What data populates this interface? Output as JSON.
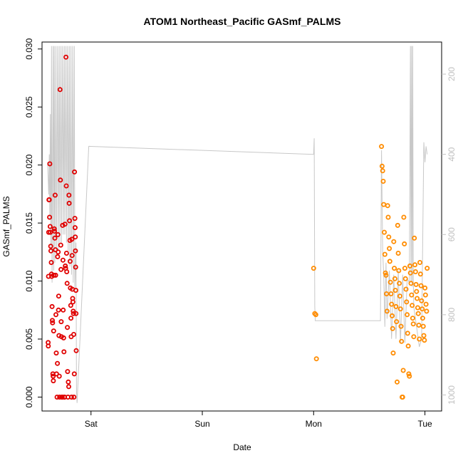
{
  "chart_data": {
    "type": "scatter",
    "title": "ATOM1 Northeast_Pacific GASmf_PALMS",
    "xlabel": "Date",
    "ylabel": "GASmf_PALMS",
    "x_unit": "days since Sat 00:00 (axis prints day names)",
    "x_ticks": [
      {
        "label": "Sat",
        "value": 0
      },
      {
        "label": "Sun",
        "value": 1
      },
      {
        "label": "Mon",
        "value": 2
      },
      {
        "label": "Tue",
        "value": 3
      }
    ],
    "xlim": [
      -0.44,
      3.15
    ],
    "ylim": [
      -0.0012,
      0.0306
    ],
    "y_ticks": [
      "0.000",
      "0.005",
      "0.010",
      "0.015",
      "0.020",
      "0.025",
      "0.030"
    ],
    "y2_ticks": [
      "200",
      "400",
      "600",
      "800",
      "1000"
    ],
    "y2lim": [
      120,
      1040
    ],
    "y2_reversed": true,
    "y2_color": "#c0c0c0",
    "grid": false,
    "series": [
      {
        "color": "#e00000",
        "points": [
          [
            -0.385,
            0.0047
          ],
          [
            -0.384,
            0.0044
          ],
          [
            -0.382,
            0.0104
          ],
          [
            -0.38,
            0.0142
          ],
          [
            -0.378,
            0.017
          ],
          [
            -0.375,
            0.017
          ],
          [
            -0.372,
            0.0155
          ],
          [
            -0.37,
            0.0201
          ],
          [
            -0.367,
            0.0147
          ],
          [
            -0.365,
            0.0142
          ],
          [
            -0.362,
            0.013
          ],
          [
            -0.36,
            0.0126
          ],
          [
            -0.357,
            0.0116
          ],
          [
            -0.355,
            0.0106
          ],
          [
            -0.353,
            0.0104
          ],
          [
            -0.35,
            0.0078
          ],
          [
            -0.347,
            0.0066
          ],
          [
            -0.345,
            0.0064
          ],
          [
            -0.343,
            0.002
          ],
          [
            -0.34,
            0.0018
          ],
          [
            -0.338,
            0.0014
          ],
          [
            -0.336,
            0.0057
          ],
          [
            -0.333,
            0.0105
          ],
          [
            -0.33,
            0.0145
          ],
          [
            -0.328,
            0.0143
          ],
          [
            -0.325,
            0.0137
          ],
          [
            -0.322,
            0.0174
          ],
          [
            -0.32,
            0.0127
          ],
          [
            -0.318,
            0.0105
          ],
          [
            -0.315,
            0.0071
          ],
          [
            -0.312,
            0.0038
          ],
          [
            -0.31,
            0.002
          ],
          [
            -0.305,
            0.0
          ],
          [
            -0.302,
            0.0029
          ],
          [
            -0.3,
            0.0121
          ],
          [
            -0.297,
            0.014
          ],
          [
            -0.295,
            0.0125
          ],
          [
            -0.292,
            0.0075
          ],
          [
            -0.29,
            0.0087
          ],
          [
            -0.288,
            0.0053
          ],
          [
            -0.285,
            0.0018
          ],
          [
            -0.282,
            0.0
          ],
          [
            -0.278,
            0.0265
          ],
          [
            -0.275,
            0.0187
          ],
          [
            -0.272,
            0.0131
          ],
          [
            -0.27,
            0.011
          ],
          [
            -0.268,
            0.0065
          ],
          [
            -0.265,
            0.0052
          ],
          [
            -0.262,
            0.0
          ],
          [
            -0.258,
            0.0
          ],
          [
            -0.255,
            0.0148
          ],
          [
            -0.252,
            0.0118
          ],
          [
            -0.25,
            0.0075
          ],
          [
            -0.246,
            0.0051
          ],
          [
            -0.243,
            0.0039
          ],
          [
            -0.24,
            0.0
          ],
          [
            -0.237,
            0.0
          ],
          [
            -0.234,
            0.0149
          ],
          [
            -0.231,
            0.0113
          ],
          [
            -0.228,
            0.0111
          ],
          [
            -0.225,
            0.0293
          ],
          [
            -0.222,
            0.0182
          ],
          [
            -0.22,
            0.0124
          ],
          [
            -0.218,
            0.0108
          ],
          [
            -0.215,
            0.0098
          ],
          [
            -0.212,
            0.006
          ],
          [
            -0.21,
            0.0022
          ],
          [
            -0.207,
            0.0
          ],
          [
            -0.204,
            0.0013
          ],
          [
            -0.2,
            0.0009
          ],
          [
            -0.198,
            0.0174
          ],
          [
            -0.196,
            0.0167
          ],
          [
            -0.193,
            0.0152
          ],
          [
            -0.19,
            0.0135
          ],
          [
            -0.188,
            0.0117
          ],
          [
            -0.185,
            0.0094
          ],
          [
            -0.182,
            0.0079
          ],
          [
            -0.18,
            0.0068
          ],
          [
            -0.178,
            0.0052
          ],
          [
            -0.175,
            0.0
          ],
          [
            -0.172,
            0.0136
          ],
          [
            -0.17,
            0.0122
          ],
          [
            -0.168,
            0.0093
          ],
          [
            -0.165,
            0.0085
          ],
          [
            -0.162,
            0.0082
          ],
          [
            -0.16,
            0.0074
          ],
          [
            -0.157,
            0.0072
          ],
          [
            -0.155,
            0.0054
          ],
          [
            -0.153,
            0.0
          ],
          [
            -0.15,
            0.002
          ],
          [
            -0.148,
            0.0194
          ],
          [
            -0.145,
            0.0154
          ],
          [
            -0.143,
            0.0146
          ],
          [
            -0.141,
            0.0138
          ],
          [
            -0.14,
            0.0126
          ],
          [
            -0.138,
            0.0112
          ],
          [
            -0.136,
            0.0092
          ],
          [
            -0.135,
            0.0072
          ],
          [
            -0.133,
            0.004
          ]
        ]
      },
      {
        "color": "#ff8c00",
        "points": [
          [
            2.0,
            0.0111
          ],
          [
            2.01,
            0.0072
          ],
          [
            2.02,
            0.0071
          ],
          [
            2.025,
            0.0033
          ],
          [
            2.61,
            0.0216
          ],
          [
            2.615,
            0.0199
          ],
          [
            2.62,
            0.0195
          ],
          [
            2.625,
            0.0186
          ],
          [
            2.63,
            0.0166
          ],
          [
            2.635,
            0.0142
          ],
          [
            2.64,
            0.0123
          ],
          [
            2.645,
            0.0107
          ],
          [
            2.65,
            0.0105
          ],
          [
            2.655,
            0.0089
          ],
          [
            2.66,
            0.0074
          ],
          [
            2.665,
            0.0165
          ],
          [
            2.67,
            0.0155
          ],
          [
            2.675,
            0.0138
          ],
          [
            2.68,
            0.0128
          ],
          [
            2.685,
            0.0117
          ],
          [
            2.69,
            0.0099
          ],
          [
            2.695,
            0.0089
          ],
          [
            2.7,
            0.008
          ],
          [
            2.705,
            0.007
          ],
          [
            2.71,
            0.0059
          ],
          [
            2.715,
            0.0038
          ],
          [
            2.72,
            0.0134
          ],
          [
            2.725,
            0.0111
          ],
          [
            2.73,
            0.0102
          ],
          [
            2.735,
            0.0092
          ],
          [
            2.74,
            0.0078
          ],
          [
            2.745,
            0.0065
          ],
          [
            2.75,
            0.0013
          ],
          [
            2.755,
            0.0148
          ],
          [
            2.76,
            0.0124
          ],
          [
            2.765,
            0.0109
          ],
          [
            2.77,
            0.0098
          ],
          [
            2.775,
            0.0087
          ],
          [
            2.78,
            0.0076
          ],
          [
            2.785,
            0.0061
          ],
          [
            2.79,
            0.0048
          ],
          [
            2.795,
            0.0
          ],
          [
            2.8,
            0.0
          ],
          [
            2.805,
            0.0023
          ],
          [
            2.81,
            0.0155
          ],
          [
            2.815,
            0.0132
          ],
          [
            2.82,
            0.0111
          ],
          [
            2.825,
            0.0102
          ],
          [
            2.83,
            0.0093
          ],
          [
            2.835,
            0.0082
          ],
          [
            2.84,
            0.0071
          ],
          [
            2.845,
            0.0055
          ],
          [
            2.85,
            0.0044
          ],
          [
            2.855,
            0.002
          ],
          [
            2.86,
            0.0018
          ],
          [
            2.865,
            0.0113
          ],
          [
            2.87,
            0.0107
          ],
          [
            2.875,
            0.0098
          ],
          [
            2.88,
            0.0088
          ],
          [
            2.885,
            0.0079
          ],
          [
            2.89,
            0.0068
          ],
          [
            2.895,
            0.0063
          ],
          [
            2.9,
            0.0052
          ],
          [
            2.905,
            0.0137
          ],
          [
            2.91,
            0.0114
          ],
          [
            2.915,
            0.0108
          ],
          [
            2.92,
            0.0097
          ],
          [
            2.925,
            0.0091
          ],
          [
            2.93,
            0.0085
          ],
          [
            2.935,
            0.0077
          ],
          [
            2.94,
            0.0072
          ],
          [
            2.945,
            0.0062
          ],
          [
            2.95,
            0.005
          ],
          [
            2.955,
            0.0116
          ],
          [
            2.96,
            0.0106
          ],
          [
            2.965,
            0.0096
          ],
          [
            2.97,
            0.0083
          ],
          [
            2.975,
            0.0076
          ],
          [
            2.98,
            0.0068
          ],
          [
            2.985,
            0.0061
          ],
          [
            2.99,
            0.0053
          ],
          [
            2.995,
            0.0049
          ],
          [
            3.0,
            0.0094
          ],
          [
            3.005,
            0.0088
          ],
          [
            3.01,
            0.008
          ],
          [
            3.015,
            0.0074
          ],
          [
            3.02,
            0.0111
          ]
        ]
      }
    ],
    "secondary_line": {
      "color": "#c8c8c8",
      "points": [
        [
          -0.39,
          420
        ],
        [
          -0.38,
          500
        ],
        [
          -0.375,
          400
        ],
        [
          -0.37,
          560
        ],
        [
          -0.365,
          300
        ],
        [
          -0.36,
          640
        ],
        [
          -0.355,
          130
        ],
        [
          -0.35,
          720
        ],
        [
          -0.34,
          130
        ],
        [
          -0.335,
          690
        ],
        [
          -0.33,
          130
        ],
        [
          -0.325,
          670
        ],
        [
          -0.315,
          130
        ],
        [
          -0.31,
          650
        ],
        [
          -0.3,
          130
        ],
        [
          -0.295,
          640
        ],
        [
          -0.285,
          130
        ],
        [
          -0.28,
          620
        ],
        [
          -0.27,
          130
        ],
        [
          -0.265,
          620
        ],
        [
          -0.255,
          130
        ],
        [
          -0.25,
          600
        ],
        [
          -0.24,
          130
        ],
        [
          -0.235,
          600
        ],
        [
          -0.225,
          130
        ],
        [
          -0.22,
          620
        ],
        [
          -0.21,
          130
        ],
        [
          -0.205,
          650
        ],
        [
          -0.195,
          130
        ],
        [
          -0.19,
          680
        ],
        [
          -0.18,
          130
        ],
        [
          -0.175,
          700
        ],
        [
          -0.165,
          130
        ],
        [
          -0.16,
          720
        ],
        [
          -0.15,
          130
        ],
        [
          -0.145,
          740
        ],
        [
          -0.135,
          620
        ],
        [
          -0.13,
          990
        ],
        [
          -0.125,
          1020
        ],
        [
          -0.02,
          380
        ],
        [
          2.0,
          400
        ],
        [
          2.005,
          360
        ],
        [
          2.01,
          780
        ],
        [
          2.015,
          815
        ],
        [
          2.6,
          815
        ],
        [
          2.61,
          390
        ],
        [
          2.62,
          640
        ],
        [
          2.63,
          700
        ],
        [
          2.64,
          830
        ],
        [
          2.65,
          670
        ],
        [
          2.66,
          810
        ],
        [
          2.68,
          690
        ],
        [
          2.7,
          860
        ],
        [
          2.72,
          700
        ],
        [
          2.74,
          860
        ],
        [
          2.76,
          690
        ],
        [
          2.78,
          870
        ],
        [
          2.8,
          700
        ],
        [
          2.82,
          870
        ],
        [
          2.84,
          710
        ],
        [
          2.86,
          720
        ],
        [
          2.87,
          130
        ],
        [
          2.875,
          720
        ],
        [
          2.88,
          130
        ],
        [
          2.885,
          730
        ],
        [
          2.89,
          130
        ],
        [
          2.895,
          710
        ],
        [
          2.9,
          780
        ],
        [
          2.93,
          840
        ],
        [
          2.95,
          880
        ],
        [
          2.97,
          860
        ],
        [
          2.99,
          370
        ],
        [
          3.0,
          420
        ],
        [
          3.01,
          380
        ],
        [
          3.02,
          400
        ]
      ]
    }
  }
}
